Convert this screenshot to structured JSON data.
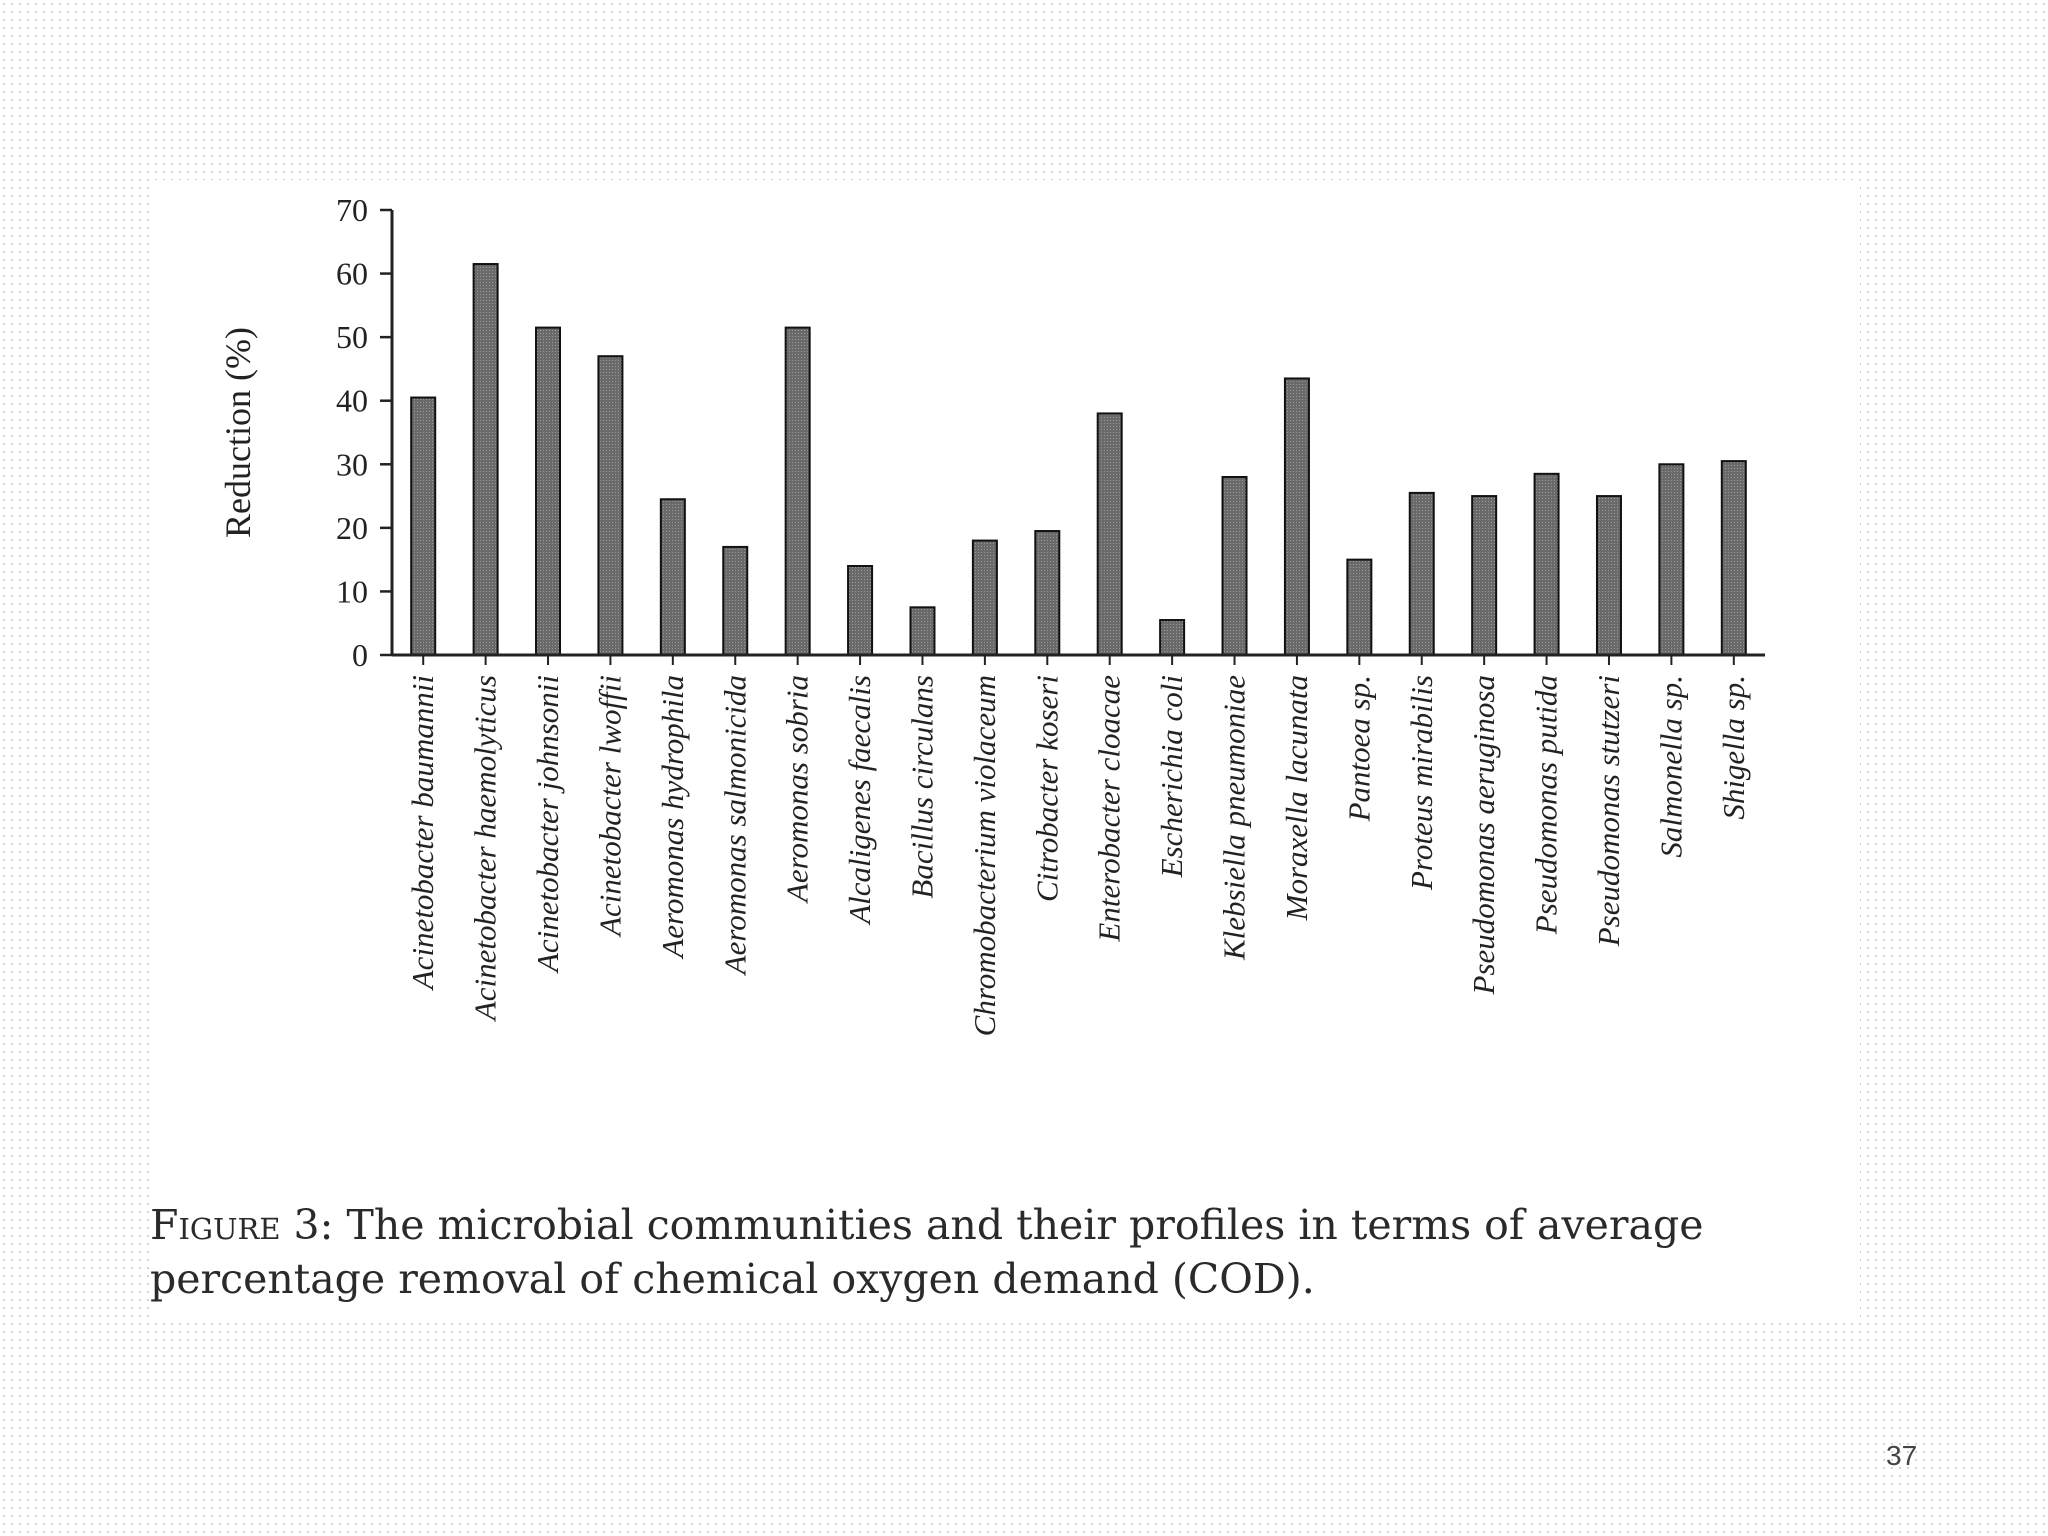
{
  "chart_data": {
    "type": "bar",
    "ylabel": "Reduction (%)",
    "xlabel": "",
    "ylim": [
      0,
      70
    ],
    "yticks": [
      0,
      10,
      20,
      30,
      40,
      50,
      60,
      70
    ],
    "grid": false,
    "categories": [
      "Acinetobacter baumannii",
      "Acinetobacter haemolyticus",
      "Acinetobacter johnsonii",
      "Acinetobacter lwoffii",
      "Aeromonas hydrophila",
      "Aeromonas salmonicida",
      "Aeromonas sobria",
      "Alcaligenes faecalis",
      "Bacillus circulans",
      "Chromobacterium violaceum",
      "Citrobacter koseri",
      "Enterobacter cloacae",
      "Escherichia coli",
      "Klebsiella pneumoniae",
      "Moraxella lacunata",
      "Pantoea sp.",
      "Proteus mirabilis",
      "Pseudomonas aeruginosa",
      "Pseudomonas putida",
      "Pseudomonas stutzeri",
      "Salmonella sp.",
      "Shigella sp."
    ],
    "values": [
      40.5,
      61.5,
      51.5,
      47,
      24.5,
      17,
      51.5,
      14,
      7.5,
      18,
      19.5,
      38,
      5.5,
      28,
      43.5,
      15,
      25.5,
      25,
      28.5,
      25,
      30,
      30.5
    ]
  },
  "caption": {
    "figure_label": "Figure 3:",
    "text": " The microbial communities and their profiles in terms of average percentage removal of chemical oxygen demand (COD)."
  },
  "slide": {
    "page_number": "37"
  },
  "colors": {
    "bar_fill": "#6a6a6a",
    "axis": "#222222"
  }
}
